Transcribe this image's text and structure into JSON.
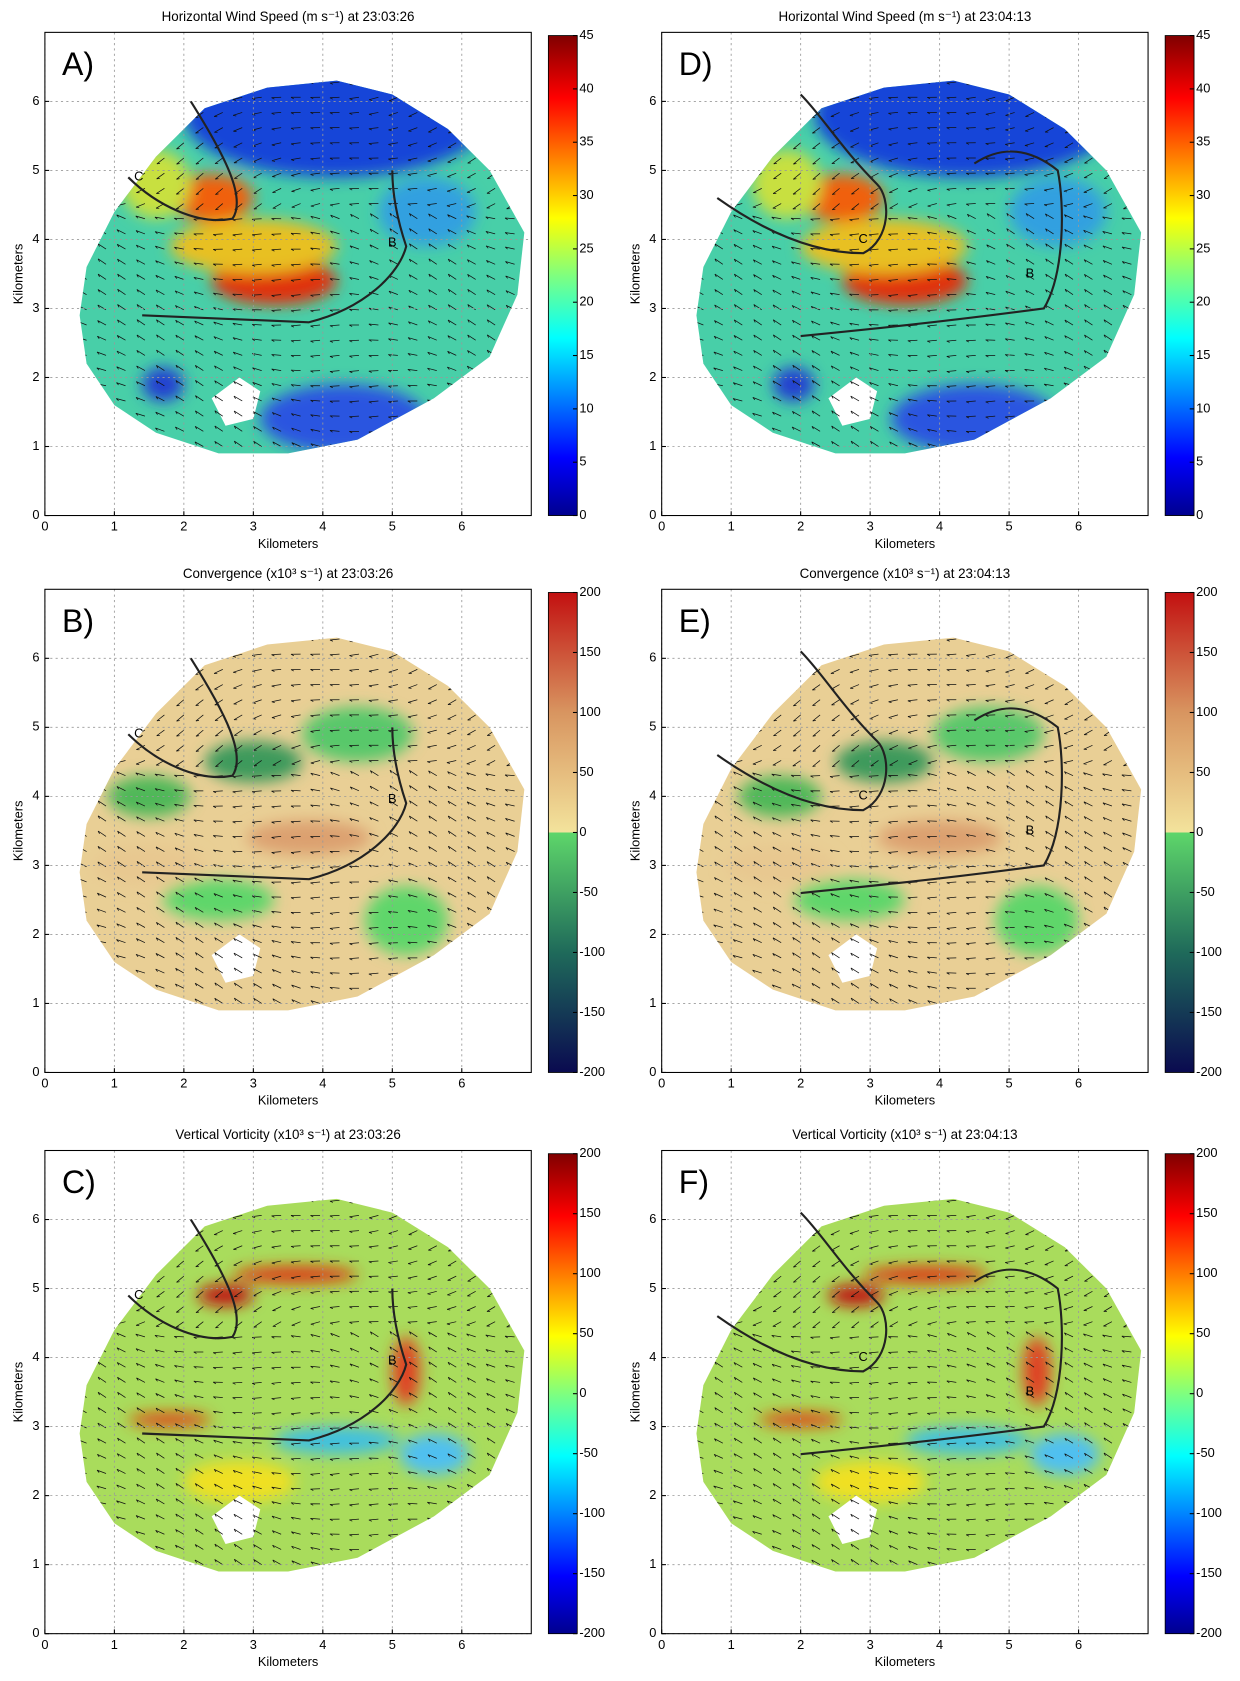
{
  "chart_data": [
    {
      "type": "heatmap",
      "panel_label": "A)",
      "title": "Horizontal Wind Speed (m s⁻¹) at 23:03:26",
      "xlabel": "Kilometers",
      "ylabel": "Kilometers",
      "xlim": [
        0,
        7
      ],
      "ylim": [
        0,
        7
      ],
      "xticks": [
        0,
        1,
        2,
        3,
        4,
        5,
        6
      ],
      "yticks": [
        0,
        1,
        2,
        3,
        4,
        5,
        6
      ],
      "grid": true,
      "colormap": "jet",
      "clim": [
        0,
        45
      ],
      "cticks": [
        0,
        5,
        10,
        15,
        20,
        25,
        30,
        35,
        40,
        45
      ],
      "annotations": [
        "C",
        "B"
      ]
    },
    {
      "type": "heatmap",
      "panel_label": "B)",
      "title": "Convergence (x10³ s⁻¹) at 23:03:26",
      "xlabel": "Kilometers",
      "ylabel": "Kilometers",
      "xlim": [
        0,
        7
      ],
      "ylim": [
        0,
        7
      ],
      "xticks": [
        0,
        1,
        2,
        3,
        4,
        5,
        6
      ],
      "yticks": [
        0,
        1,
        2,
        3,
        4,
        5,
        6
      ],
      "grid": true,
      "colormap": "diverging",
      "clim": [
        -200,
        200
      ],
      "cticks": [
        -200,
        -150,
        -100,
        -50,
        0,
        50,
        100,
        150,
        200
      ],
      "annotations": [
        "C",
        "B"
      ]
    },
    {
      "type": "heatmap",
      "panel_label": "C)",
      "title": "Vertical Vorticity (x10³ s⁻¹) at 23:03:26",
      "xlabel": "Kilometers",
      "ylabel": "Kilometers",
      "xlim": [
        0,
        7
      ],
      "ylim": [
        0,
        7
      ],
      "xticks": [
        0,
        1,
        2,
        3,
        4,
        5,
        6
      ],
      "yticks": [
        0,
        1,
        2,
        3,
        4,
        5,
        6
      ],
      "grid": true,
      "colormap": "jet",
      "clim": [
        -200,
        200
      ],
      "cticks": [
        -200,
        -150,
        -100,
        -50,
        0,
        50,
        100,
        150,
        200
      ],
      "annotations": [
        "C",
        "B"
      ]
    },
    {
      "type": "heatmap",
      "panel_label": "D)",
      "title": "Horizontal Wind Speed (m s⁻¹) at 23:04:13",
      "xlabel": "Kilometers",
      "ylabel": "Kilometers",
      "xlim": [
        0,
        7
      ],
      "ylim": [
        0,
        7
      ],
      "xticks": [
        0,
        1,
        2,
        3,
        4,
        5,
        6
      ],
      "yticks": [
        0,
        1,
        2,
        3,
        4,
        5,
        6
      ],
      "grid": true,
      "colormap": "jet",
      "clim": [
        0,
        45
      ],
      "cticks": [
        0,
        5,
        10,
        15,
        20,
        25,
        30,
        35,
        40,
        45
      ],
      "annotations": [
        "C",
        "B"
      ]
    },
    {
      "type": "heatmap",
      "panel_label": "E)",
      "title": "Convergence (x10³ s⁻¹) at 23:04:13",
      "xlabel": "Kilometers",
      "ylabel": "Kilometers",
      "xlim": [
        0,
        7
      ],
      "ylim": [
        0,
        7
      ],
      "xticks": [
        0,
        1,
        2,
        3,
        4,
        5,
        6
      ],
      "yticks": [
        0,
        1,
        2,
        3,
        4,
        5,
        6
      ],
      "grid": true,
      "colormap": "diverging",
      "clim": [
        -200,
        200
      ],
      "cticks": [
        -200,
        -150,
        -100,
        -50,
        0,
        50,
        100,
        150,
        200
      ],
      "annotations": [
        "C",
        "B"
      ]
    },
    {
      "type": "heatmap",
      "panel_label": "F)",
      "title": "Vertical Vorticity (x10³ s⁻¹) at 23:04:13",
      "xlabel": "Kilometers",
      "ylabel": "Kilometers",
      "xlim": [
        0,
        7
      ],
      "ylim": [
        0,
        7
      ],
      "xticks": [
        0,
        1,
        2,
        3,
        4,
        5,
        6
      ],
      "yticks": [
        0,
        1,
        2,
        3,
        4,
        5,
        6
      ],
      "grid": true,
      "colormap": "jet",
      "clim": [
        -200,
        200
      ],
      "cticks": [
        -200,
        -150,
        -100,
        -50,
        0,
        50,
        100,
        150,
        200
      ],
      "annotations": [
        "C",
        "B"
      ]
    }
  ]
}
